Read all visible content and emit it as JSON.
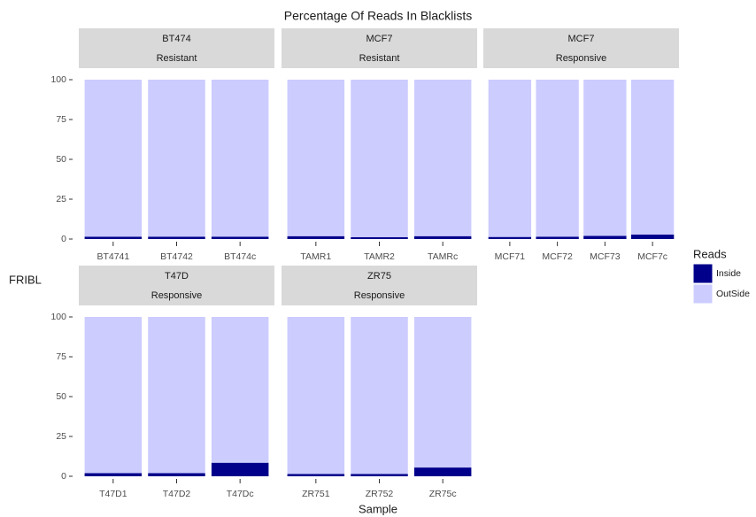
{
  "chart_data": {
    "type": "facet_stacked_bar",
    "title": "Percentage Of Reads In Blacklists",
    "x_label": "Sample",
    "y_label": "FRIBL",
    "legend_title": "Reads",
    "legend": [
      {
        "name": "Inside",
        "color": "#00008b"
      },
      {
        "name": "OutSide",
        "color": "#ccccff"
      }
    ],
    "ylim": [
      0,
      100
    ],
    "yticks": [
      0,
      25,
      50,
      75,
      100
    ],
    "panels": [
      {
        "strip": [
          "BT474",
          "Resistant"
        ],
        "categories": [
          "BT4741",
          "BT4742",
          "BT474c"
        ],
        "series": [
          {
            "values": [
              1.5,
              1.5,
              1.5
            ]
          },
          {
            "values": [
              98.5,
              98.5,
              98.5
            ]
          }
        ]
      },
      {
        "strip": [
          "MCF7",
          "Resistant"
        ],
        "categories": [
          "TAMR1",
          "TAMR2",
          "TAMRc"
        ],
        "series": [
          {
            "values": [
              1.8,
              1.2,
              1.8
            ]
          },
          {
            "values": [
              98.2,
              98.8,
              98.2
            ]
          }
        ]
      },
      {
        "strip": [
          "MCF7",
          "Responsive"
        ],
        "categories": [
          "MCF71",
          "MCF72",
          "MCF73",
          "MCF7c"
        ],
        "series": [
          {
            "values": [
              1.3,
              1.5,
              2,
              2.8
            ]
          },
          {
            "values": [
              98.7,
              98.5,
              98,
              97.2
            ]
          }
        ]
      },
      {
        "strip": [
          "T47D",
          "Responsive"
        ],
        "categories": [
          "T47D1",
          "T47D2",
          "T47Dc"
        ],
        "series": [
          {
            "values": [
              2,
              2,
              8.5
            ]
          },
          {
            "values": [
              98,
              98,
              91.5
            ]
          }
        ]
      },
      {
        "strip": [
          "ZR75",
          "Responsive"
        ],
        "categories": [
          "ZR751",
          "ZR752",
          "ZR75c"
        ],
        "series": [
          {
            "values": [
              1.5,
              1.5,
              5.5
            ]
          },
          {
            "values": [
              98.5,
              98.5,
              94.5
            ]
          }
        ]
      }
    ]
  }
}
